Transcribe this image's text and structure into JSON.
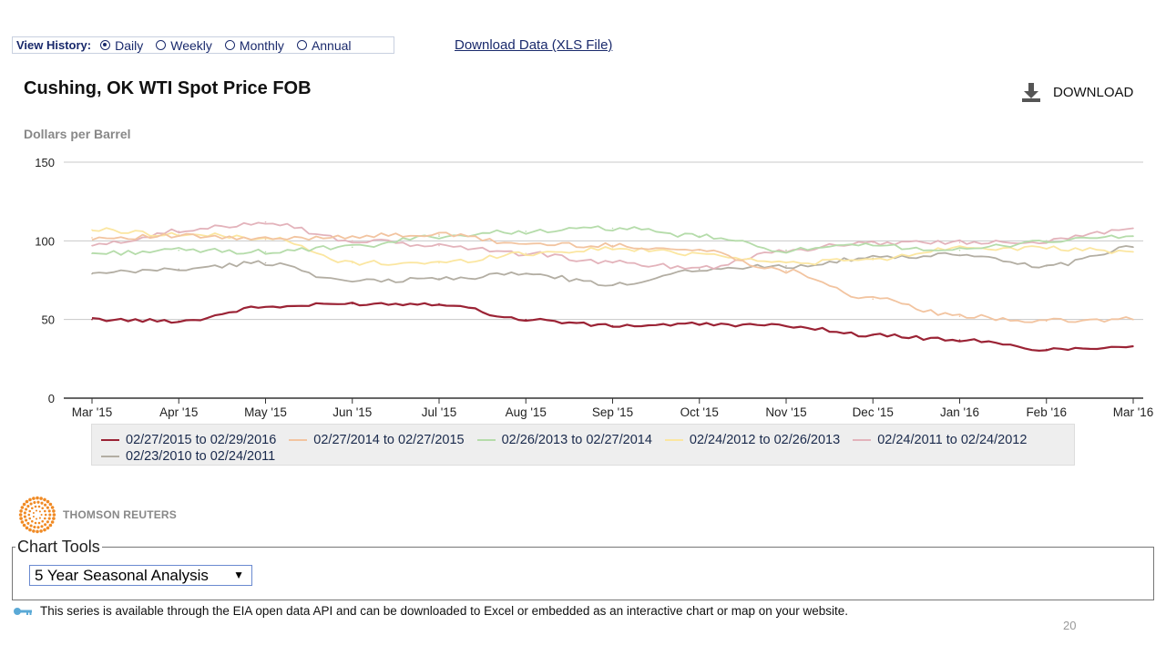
{
  "history": {
    "label": "View History:",
    "options": [
      "Daily",
      "Weekly",
      "Monthly",
      "Annual"
    ],
    "selected": "Daily"
  },
  "download_data_link": "Download Data (XLS File)",
  "title": "Cushing, OK WTI Spot Price FOB",
  "download_button": "DOWNLOAD",
  "brand": "THOMSON REUTERS",
  "chart_tools": {
    "legend": "Chart Tools",
    "selected": "5 Year Seasonal Analysis"
  },
  "api_note": "This series is available through the EIA open data API and can be downloaded to Excel or embedded as an interactive chart or map on your website.",
  "page_number": "20",
  "chart_data": {
    "type": "line",
    "title": "Cushing, OK WTI Spot Price FOB",
    "ylabel": "Dollars per Barrel",
    "xlabel": "",
    "ylim": [
      0,
      150
    ],
    "yticks": [
      0,
      50,
      100,
      150
    ],
    "grid": true,
    "legend_position": "bottom",
    "x": [
      "Mar '15",
      "Apr '15",
      "May '15",
      "Jun '15",
      "Jul '15",
      "Aug '15",
      "Sep '15",
      "Oct '15",
      "Nov '15",
      "Dec '15",
      "Jan '16",
      "Feb '16",
      "Mar '16"
    ],
    "series": [
      {
        "name": "02/27/2015 to 02/29/2016",
        "color": "#9b2335",
        "values": [
          50,
          49,
          58,
          60,
          60,
          50,
          46,
          47,
          46,
          40,
          37,
          31,
          33
        ]
      },
      {
        "name": "02/27/2014 to 02/27/2015",
        "color": "#f2c4a0",
        "values": [
          102,
          103,
          101,
          103,
          104,
          98,
          97,
          94,
          81,
          63,
          52,
          49,
          50
        ]
      },
      {
        "name": "02/26/2013 to 02/27/2014",
        "color": "#b5dcaa",
        "values": [
          92,
          94,
          93,
          96,
          103,
          106,
          108,
          103,
          94,
          97,
          94,
          100,
          103
        ]
      },
      {
        "name": "02/24/2012 to 02/26/2013",
        "color": "#fbe6a0",
        "values": [
          107,
          104,
          102,
          86,
          86,
          92,
          95,
          92,
          86,
          88,
          96,
          95,
          93
        ]
      },
      {
        "name": "02/24/2011 to 02/24/2012",
        "color": "#e3b3bb",
        "values": [
          97,
          106,
          112,
          100,
          97,
          92,
          86,
          83,
          94,
          99,
          99,
          100,
          108
        ]
      },
      {
        "name": "02/23/2010 to 02/24/2011",
        "color": "#b3aea3",
        "values": [
          79,
          82,
          86,
          74,
          76,
          79,
          72,
          82,
          84,
          89,
          91,
          84,
          96
        ]
      }
    ]
  }
}
